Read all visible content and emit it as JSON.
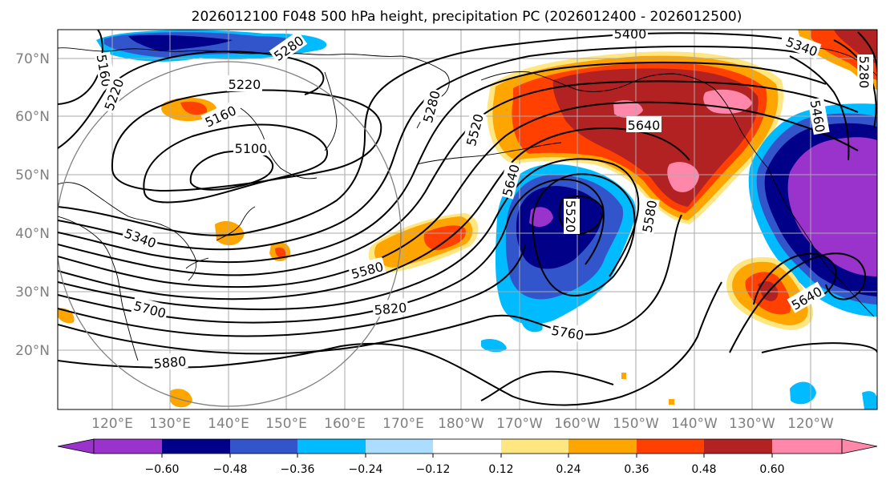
{
  "title": "2026012100 F048 500 hPa height, precipitation PC (2026012400 - 2026012500)",
  "lat_labels": [
    "70°N",
    "60°N",
    "50°N",
    "40°N",
    "30°N",
    "20°N"
  ],
  "lon_labels": [
    "120°E",
    "130°E",
    "140°E",
    "150°E",
    "160°E",
    "170°E",
    "180°W",
    "170°W",
    "160°W",
    "150°W",
    "140°W",
    "130°W",
    "120°W"
  ],
  "height_contour_labels": [
    "5160",
    "5220",
    "5280",
    "5220",
    "5160",
    "5100",
    "5340",
    "5700",
    "5880",
    "5580",
    "5820",
    "5280",
    "5520",
    "5640",
    "5400",
    "5340",
    "5280",
    "5460",
    "5640",
    "5520",
    "5580",
    "5760",
    "5640"
  ],
  "colorbar": {
    "ticks": [
      "−0.60",
      "−0.48",
      "−0.36",
      "−0.24",
      "−0.12",
      "0.12",
      "0.24",
      "0.36",
      "0.48",
      "0.60"
    ],
    "colors": [
      "#9933cc",
      "#000088",
      "#3355cc",
      "#00bbff",
      "#aaddff",
      "#ffffff",
      "#ffe680",
      "#ffa500",
      "#ff4000",
      "#b22222",
      "#ff88aa"
    ]
  },
  "pc_colors": {
    "neg3": "#9933cc",
    "neg2": "#000088",
    "neg1": "#3355cc",
    "neg0": "#00bbff",
    "pos1": "#ffa500",
    "pos2": "#ff4000",
    "pos3": "#b22222",
    "pos4": "#ff88aa",
    "pos0": "#ffe680"
  }
}
